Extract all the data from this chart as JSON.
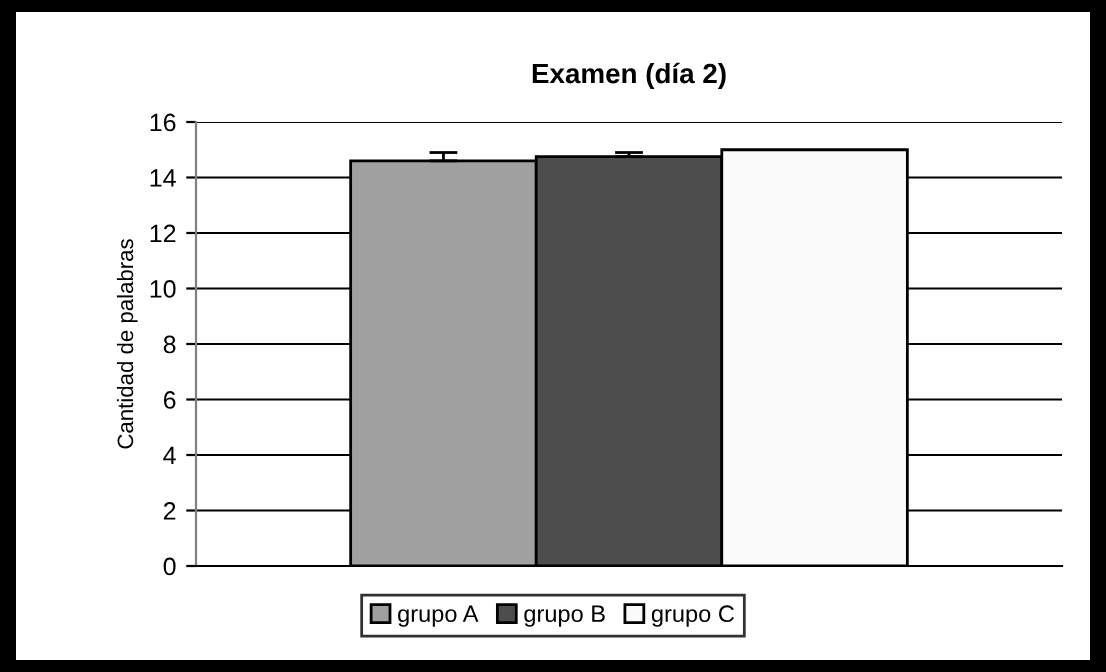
{
  "chart_data": {
    "type": "bar",
    "title": "Examen (día 2)",
    "ylabel": "Cantidad de palabras",
    "categories": [
      null
    ],
    "series": [
      {
        "name": "grupo A",
        "color": "#a0a0a0",
        "values": [
          14.6
        ],
        "errors": [
          0.3
        ]
      },
      {
        "name": "grupo B",
        "color": "#4d4d4d",
        "values": [
          14.75
        ],
        "errors": [
          0.15
        ]
      },
      {
        "name": "grupo C",
        "color": "#fafafa",
        "values": [
          15.0
        ],
        "errors": [
          null
        ]
      }
    ],
    "ylim": [
      0,
      16
    ],
    "yticks": [
      0,
      2,
      4,
      6,
      8,
      10,
      12,
      14,
      16
    ],
    "grid": "y",
    "legend": "bottom"
  }
}
